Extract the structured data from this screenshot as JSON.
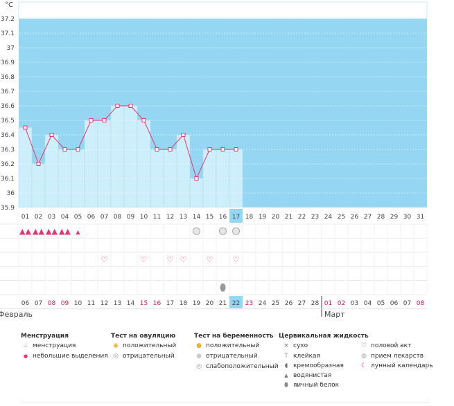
{
  "chart_data": {
    "type": "line",
    "unit_label": "°C",
    "y_ticks": [
      "35.9",
      "36",
      "36.1",
      "36.2",
      "36.3",
      "36.4",
      "36.5",
      "36.6",
      "36.7",
      "36.8",
      "36.9",
      "37",
      "37.1",
      "37.2"
    ],
    "ylim": [
      35.9,
      37.2
    ],
    "cycle_days": [
      "01",
      "02",
      "03",
      "04",
      "05",
      "06",
      "07",
      "08",
      "09",
      "10",
      "11",
      "12",
      "13",
      "14",
      "15",
      "16",
      "17",
      "18",
      "19",
      "20",
      "21",
      "22",
      "23",
      "24",
      "25",
      "26",
      "27",
      "28",
      "29",
      "30",
      "31"
    ],
    "temperatures": [
      36.45,
      36.2,
      36.4,
      36.3,
      36.3,
      36.5,
      36.5,
      36.6,
      36.6,
      36.5,
      36.3,
      36.3,
      36.4,
      36.1,
      36.3,
      36.3,
      36.3
    ],
    "today_index": 16,
    "dates": [
      "06",
      "07",
      "08",
      "09",
      "10",
      "11",
      "12",
      "13",
      "14",
      "15",
      "16",
      "17",
      "18",
      "19",
      "20",
      "21",
      "22",
      "23",
      "24",
      "25",
      "26",
      "27",
      "28",
      "01",
      "02",
      "03",
      "04",
      "05",
      "06",
      "07",
      "08"
    ],
    "red_date_indices": [
      2,
      3,
      9,
      10,
      17,
      23,
      24,
      30
    ],
    "month_labels": [
      "Февраль",
      "Март"
    ],
    "march_start_index": 23,
    "menstruation_row": [
      "heavy",
      "heavy",
      "heavy",
      "heavy",
      "light"
    ],
    "pregnancy_test_days": [
      13,
      15,
      16
    ],
    "intercourse_days": [
      6,
      9,
      11,
      12,
      14,
      16
    ],
    "cervical_fluid_days": [
      15
    ]
  },
  "legend": {
    "menstruation": {
      "title": "Менструация",
      "items": [
        "менструация",
        "небольшие выделения"
      ]
    },
    "ovulation_test": {
      "title": "Тест на овуляцию",
      "items": [
        "положительный",
        "отрицательный"
      ]
    },
    "pregnancy_test": {
      "title": "Тест на беременность",
      "items": [
        "положительный",
        "отрицательный",
        "слабоположительный"
      ]
    },
    "cervical_fluid": {
      "title": "Цервикальная жидкость",
      "items": [
        "сухо",
        "клейкая",
        "кремообразная",
        "водянистая",
        "яичный белок"
      ]
    },
    "other": {
      "items": [
        "половой акт",
        "прием лекарств",
        "лунный календарь"
      ]
    }
  },
  "colors": {
    "sky": "#95d7f2",
    "column": "#cdeefb",
    "line": "#e8336e",
    "today": "#95d7f2",
    "red_text": "#d4145a"
  },
  "icons": {
    "menstruation": "drop-icon",
    "light": "small-drop-icon",
    "ovulation_pos": "sun-icon",
    "ovulation_neg": "circle-icon",
    "pregnancy": "swirl-icon",
    "heart": "heart-icon",
    "dry": "cross-icon",
    "sticky": "t-icon",
    "creamy": "creamy-icon",
    "watery": "drop-gray-icon",
    "eggwhite": "egg-icon",
    "medicine": "pill-icon",
    "moon": "moon-icon"
  }
}
